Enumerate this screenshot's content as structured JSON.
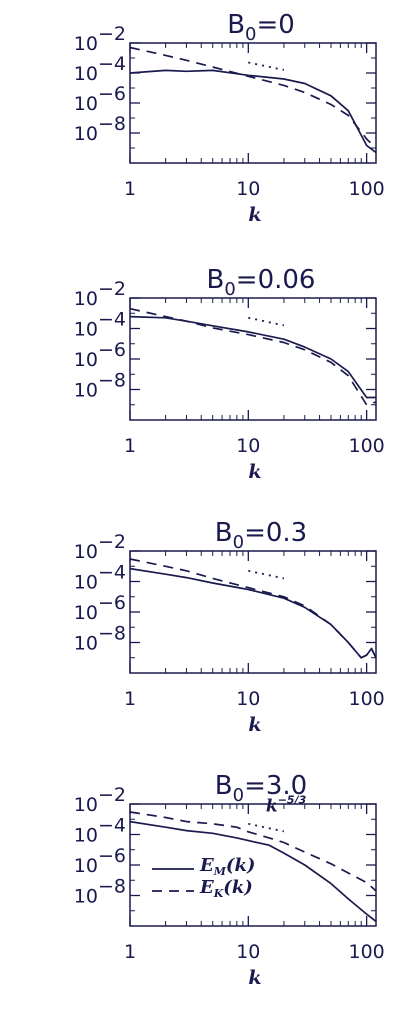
{
  "colors": {
    "ink": "#1a1a4e",
    "background": "#ffffff"
  },
  "chart_data": [
    {
      "type": "line",
      "title_main": "B",
      "title_sub": "0",
      "title_rest": "=0",
      "xlabel": "k",
      "x_scale": "log",
      "y_scale": "log",
      "xlim": [
        1,
        120
      ],
      "ylim": [
        1e-10,
        0.01
      ],
      "x_ticks": [
        {
          "label": "1",
          "value": 1
        },
        {
          "label": "10",
          "value": 10
        },
        {
          "label": "100",
          "value": 100
        }
      ],
      "y_ticks": [
        {
          "base": "10",
          "exp": "−2",
          "value": 0.01
        },
        {
          "base": "10",
          "exp": "−4",
          "value": 0.0001
        },
        {
          "base": "10",
          "exp": "−6",
          "value": 1e-06
        },
        {
          "base": "10",
          "exp": "−8",
          "value": 1e-08
        }
      ],
      "series": [
        {
          "name": "E_M(k)",
          "style": "solid",
          "x": [
            1,
            2,
            3,
            5,
            10,
            20,
            30,
            50,
            70,
            100,
            120
          ],
          "y": [
            0.0001,
            0.00015,
            0.00013,
            0.00015,
            7e-05,
            4e-05,
            2e-05,
            3e-06,
            3e-07,
            1.5e-09,
            5e-10
          ]
        },
        {
          "name": "E_K(k)",
          "style": "dashed",
          "x": [
            1,
            2,
            3,
            5,
            10,
            20,
            30,
            50,
            70,
            100,
            120
          ],
          "y": [
            0.005,
            0.0015,
            0.0007,
            0.00025,
            6e-05,
            1.5e-05,
            5e-06,
            8e-07,
            1.5e-07,
            4e-09,
            1e-09
          ]
        },
        {
          "name": "k^-5/3",
          "style": "dotted",
          "x": [
            10,
            20
          ],
          "y": [
            0.0005,
            0.00016
          ]
        }
      ]
    },
    {
      "type": "line",
      "title_main": "B",
      "title_sub": "0",
      "title_rest": "=0.06",
      "xlabel": "k",
      "x_scale": "log",
      "y_scale": "log",
      "xlim": [
        1,
        120
      ],
      "ylim": [
        1e-10,
        0.01
      ],
      "x_ticks": [
        {
          "label": "1",
          "value": 1
        },
        {
          "label": "10",
          "value": 10
        },
        {
          "label": "100",
          "value": 100
        }
      ],
      "y_ticks": [
        {
          "base": "10",
          "exp": "−2",
          "value": 0.01
        },
        {
          "base": "10",
          "exp": "−4",
          "value": 0.0001
        },
        {
          "base": "10",
          "exp": "−6",
          "value": 1e-06
        },
        {
          "base": "10",
          "exp": "−8",
          "value": 1e-08
        }
      ],
      "series": [
        {
          "name": "E_M(k)",
          "style": "solid",
          "x": [
            1,
            2,
            3,
            5,
            10,
            20,
            30,
            50,
            70,
            100,
            120
          ],
          "y": [
            0.0006,
            0.0005,
            0.0003,
            0.00015,
            6e-05,
            2e-05,
            6e-06,
            1e-06,
            1.5e-07,
            3e-09,
            3e-09
          ]
        },
        {
          "name": "E_K(k)",
          "style": "dashed",
          "x": [
            1,
            2,
            3,
            5,
            10,
            20,
            30,
            50,
            70,
            100,
            120
          ],
          "y": [
            0.002,
            0.0006,
            0.0003,
            0.00011,
            4e-05,
            1.2e-05,
            4e-06,
            6e-07,
            8e-08,
            1e-09,
            1.5e-09
          ]
        },
        {
          "name": "k^-5/3",
          "style": "dotted",
          "x": [
            10,
            20
          ],
          "y": [
            0.0005,
            0.00016
          ]
        }
      ]
    },
    {
      "type": "line",
      "title_main": "B",
      "title_sub": "0",
      "title_rest": "=0.3",
      "xlabel": "k",
      "x_scale": "log",
      "y_scale": "log",
      "xlim": [
        1,
        120
      ],
      "ylim": [
        1e-10,
        0.01
      ],
      "x_ticks": [
        {
          "label": "1",
          "value": 1
        },
        {
          "label": "10",
          "value": 10
        },
        {
          "label": "100",
          "value": 100
        }
      ],
      "y_ticks": [
        {
          "base": "10",
          "exp": "−2",
          "value": 0.01
        },
        {
          "base": "10",
          "exp": "−4",
          "value": 0.0001
        },
        {
          "base": "10",
          "exp": "−6",
          "value": 1e-06
        },
        {
          "base": "10",
          "exp": "−8",
          "value": 1e-08
        }
      ],
      "series": [
        {
          "name": "E_M(k)",
          "style": "solid",
          "x": [
            1,
            2,
            3,
            5,
            10,
            20,
            30,
            50,
            70,
            90,
            100,
            110,
            120
          ],
          "y": [
            0.0007,
            0.0003,
            0.00018,
            8e-05,
            3e-05,
            8e-06,
            2e-06,
            1.5e-07,
            1e-08,
            1e-09,
            1.5e-09,
            4e-09,
            1e-09
          ]
        },
        {
          "name": "E_K(k)",
          "style": "dashed",
          "x": [
            1,
            2,
            3,
            5,
            10,
            20,
            30,
            50,
            70,
            90,
            100,
            110,
            120
          ],
          "y": [
            0.003,
            0.001,
            0.0005,
            0.00016,
            4e-05,
            1e-05,
            2.5e-06,
            1.5e-07,
            1e-08,
            1e-09,
            1.5e-09,
            4e-09,
            1e-09
          ]
        },
        {
          "name": "k^-5/3",
          "style": "dotted",
          "x": [
            10,
            20
          ],
          "y": [
            0.0005,
            0.00016
          ]
        }
      ]
    },
    {
      "type": "line",
      "title_main": "B",
      "title_sub": "0",
      "title_rest": "=3.0",
      "xlabel": "k",
      "x_scale": "log",
      "y_scale": "log",
      "xlim": [
        1,
        120
      ],
      "ylim": [
        1e-10,
        0.01
      ],
      "x_ticks": [
        {
          "label": "1",
          "value": 1
        },
        {
          "label": "10",
          "value": 10
        },
        {
          "label": "100",
          "value": 100
        }
      ],
      "y_ticks": [
        {
          "base": "10",
          "exp": "−2",
          "value": 0.01
        },
        {
          "base": "10",
          "exp": "−4",
          "value": 0.0001
        },
        {
          "base": "10",
          "exp": "−6",
          "value": 1e-06
        },
        {
          "base": "10",
          "exp": "−8",
          "value": 1e-08
        }
      ],
      "legend": {
        "placement": "bottom-left",
        "entries": [
          {
            "style": "solid",
            "main": "E",
            "sub": "M",
            "rest": "(k)"
          },
          {
            "style": "dashed",
            "main": "E",
            "sub": "K",
            "rest": "(k)"
          }
        ]
      },
      "annotation": {
        "main": "k",
        "sup": "−5/3"
      },
      "series": [
        {
          "name": "E_M(k)",
          "style": "solid",
          "x": [
            1,
            2,
            3,
            5,
            8,
            10,
            15,
            20,
            30,
            50,
            70,
            100,
            120
          ],
          "y": [
            0.0007,
            0.0003,
            0.00018,
            0.00012,
            6e-05,
            4e-05,
            2e-05,
            6e-06,
            1e-06,
            6e-08,
            6e-09,
            6e-10,
            2e-10
          ]
        },
        {
          "name": "E_K(k)",
          "style": "dashed",
          "x": [
            1,
            2,
            3,
            5,
            8,
            10,
            15,
            20,
            30,
            50,
            70,
            100,
            120
          ],
          "y": [
            0.003,
            0.0013,
            0.0007,
            0.0005,
            0.0003,
            0.00015,
            6e-05,
            3e-05,
            7e-06,
            1.2e-06,
            3e-07,
            7e-08,
            2e-08
          ]
        },
        {
          "name": "k^-5/3",
          "style": "dotted",
          "x": [
            10,
            20
          ],
          "y": [
            0.0005,
            0.00016
          ]
        }
      ]
    }
  ]
}
